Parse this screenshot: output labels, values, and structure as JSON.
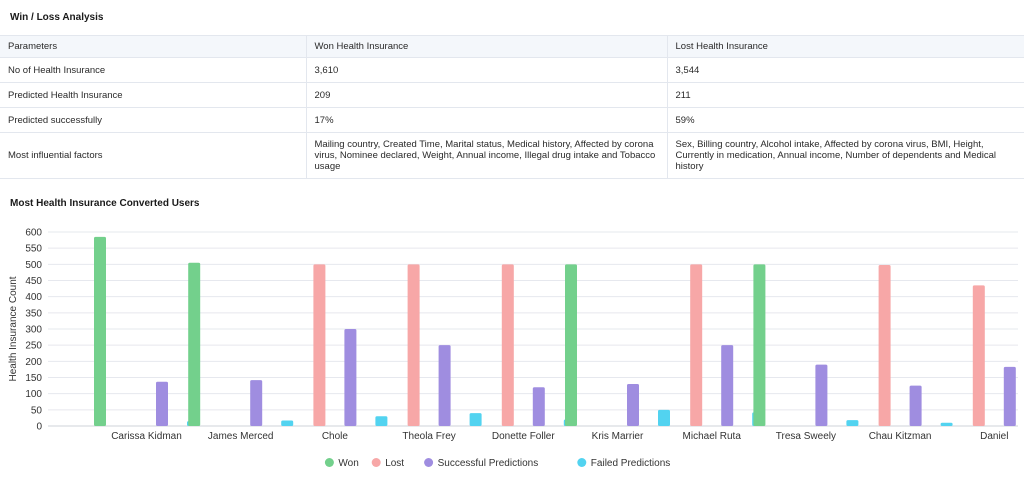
{
  "win_loss": {
    "title": "Win / Loss Analysis",
    "headers": [
      "Parameters",
      "Won Health Insurance",
      "Lost Health Insurance"
    ],
    "rows": [
      [
        "No of Health Insurance",
        "3,610",
        "3,544"
      ],
      [
        "Predicted Health Insurance",
        "209",
        "211"
      ],
      [
        "Predicted successfully",
        "17%",
        "59%"
      ],
      [
        "Most influential factors",
        "Mailing country, Created Time, Marital status, Medical history, Affected by corona virus, Nominee declared, Weight, Annual income, Illegal drug intake and Tobacco usage",
        "Sex, Billing country, Alcohol intake, Affected by corona virus, BMI, Height, Currently in medication, Annual income, Number of dependents and Medical history"
      ]
    ]
  },
  "chart_section": {
    "title": "Most Health Insurance Converted Users"
  },
  "chart_data": {
    "type": "bar",
    "title": "Most Health Insurance Converted Users",
    "xlabel": "",
    "ylabel": "Health Insurance Count",
    "ylim": [
      0,
      600
    ],
    "yticks": [
      0,
      50,
      100,
      150,
      200,
      250,
      300,
      350,
      400,
      450,
      500,
      550,
      600
    ],
    "grid": true,
    "legend_position": "bottom",
    "categories": [
      "Carissa Kidman",
      "James Merced",
      "Chole",
      "Theola Frey",
      "Donette Foller",
      "Kris Marrier",
      "Michael Ruta",
      "Tresa Sweely",
      "Chau Kitzman",
      "Daniel"
    ],
    "series": [
      {
        "name": "Won",
        "color": "#73d08c",
        "values": [
          585,
          505,
          0,
          0,
          0,
          500,
          0,
          500,
          0,
          0
        ]
      },
      {
        "name": "Lost",
        "color": "#f7a7a7",
        "values": [
          0,
          0,
          500,
          500,
          500,
          0,
          500,
          0,
          498,
          435
        ]
      },
      {
        "name": "Successful Predictions",
        "color": "#9f8de0",
        "values": [
          137,
          142,
          300,
          250,
          120,
          130,
          250,
          190,
          125,
          183
        ]
      },
      {
        "name": "Failed Predictions",
        "color": "#52d3f0",
        "values": [
          15,
          17,
          30,
          40,
          20,
          50,
          42,
          18,
          10,
          12
        ]
      }
    ]
  }
}
